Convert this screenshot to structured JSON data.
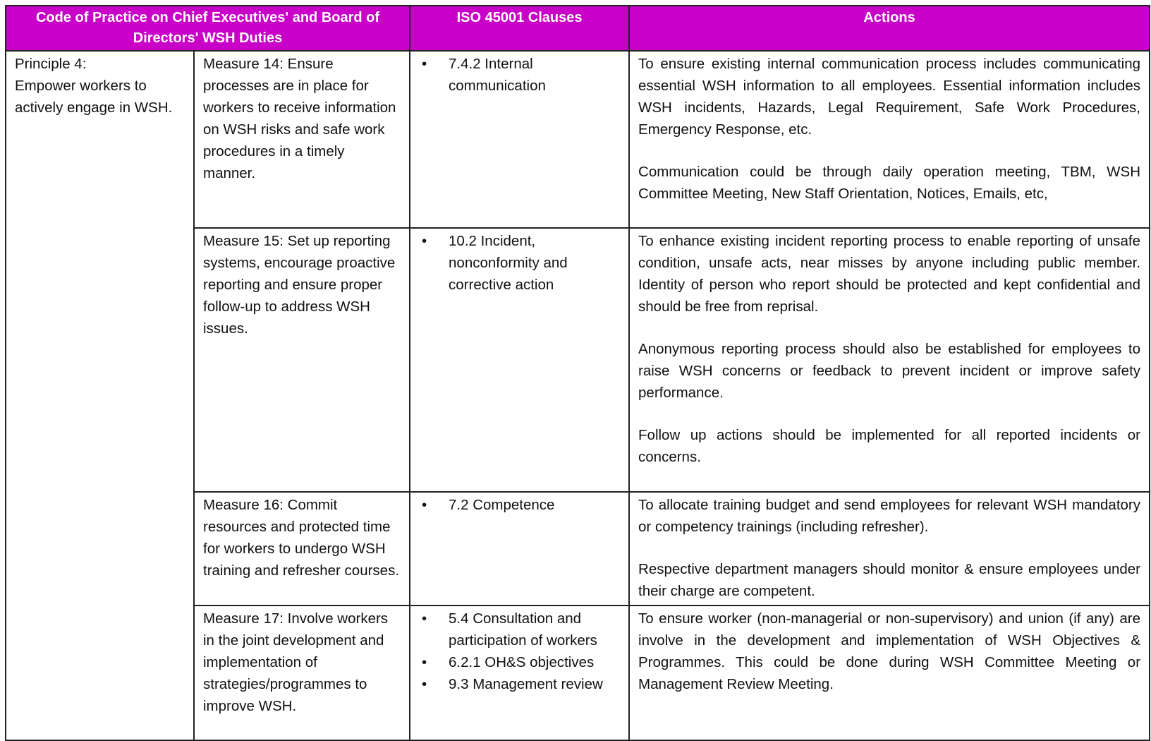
{
  "table": {
    "headers": [
      "Code of Practice on Chief Executives' and Board of Directors' WSH Duties",
      "ISO 45001 Clauses",
      "Actions"
    ],
    "principle": {
      "title": "Principle 4:",
      "text": "Empower workers to actively engage in WSH."
    },
    "rows": [
      {
        "measure": "Measure 14: Ensure processes are in place for workers to receive information on WSH risks and safe work procedures in a timely manner.",
        "clauses": [
          "7.4.2 Internal communication"
        ],
        "actions": [
          "To ensure existing internal communication process includes communicating essential WSH information to all employees. Essential information includes WSH incidents, Hazards, Legal Requirement, Safe Work Procedures, Emergency Response, etc.",
          "Communication could be through daily operation meeting, TBM, WSH Committee Meeting, New Staff Orientation, Notices, Emails, etc,"
        ]
      },
      {
        "measure": "Measure 15: Set up reporting systems, encourage proactive reporting and ensure proper follow-up to address WSH issues.",
        "clauses": [
          "10.2 Incident, nonconformity and corrective action"
        ],
        "actions": [
          "To enhance existing incident reporting process to enable reporting of unsafe condition, unsafe acts, near misses by anyone including public member. Identity of person who report should be protected and kept confidential and should be free from reprisal.",
          "Anonymous reporting process should also be established for employees to raise WSH concerns or feedback to prevent incident or improve safety performance.",
          "Follow up actions should be implemented for all reported incidents or concerns."
        ]
      },
      {
        "measure": "Measure 16: Commit resources and protected time for workers to undergo WSH training and refresher courses.",
        "clauses": [
          "7.2 Competence"
        ],
        "actions": [
          "To allocate training budget and send employees for relevant WSH mandatory or competency trainings (including refresher).",
          "Respective department managers should monitor & ensure employees under their charge are competent."
        ]
      },
      {
        "measure": "Measure 17: Involve workers in the joint development and implementation of strategies/programmes to improve WSH.",
        "clauses": [
          "5.4 Consultation and participation of workers",
          "6.2.1 OH&S objectives",
          "9.3 Management review"
        ],
        "actions": [
          "To ensure worker (non-managerial or non-supervisory) and union (if any) are involve in the development and implementation of WSH Objectives & Programmes. This could be done during WSH Committee Meeting or Management Review Meeting."
        ]
      }
    ]
  }
}
